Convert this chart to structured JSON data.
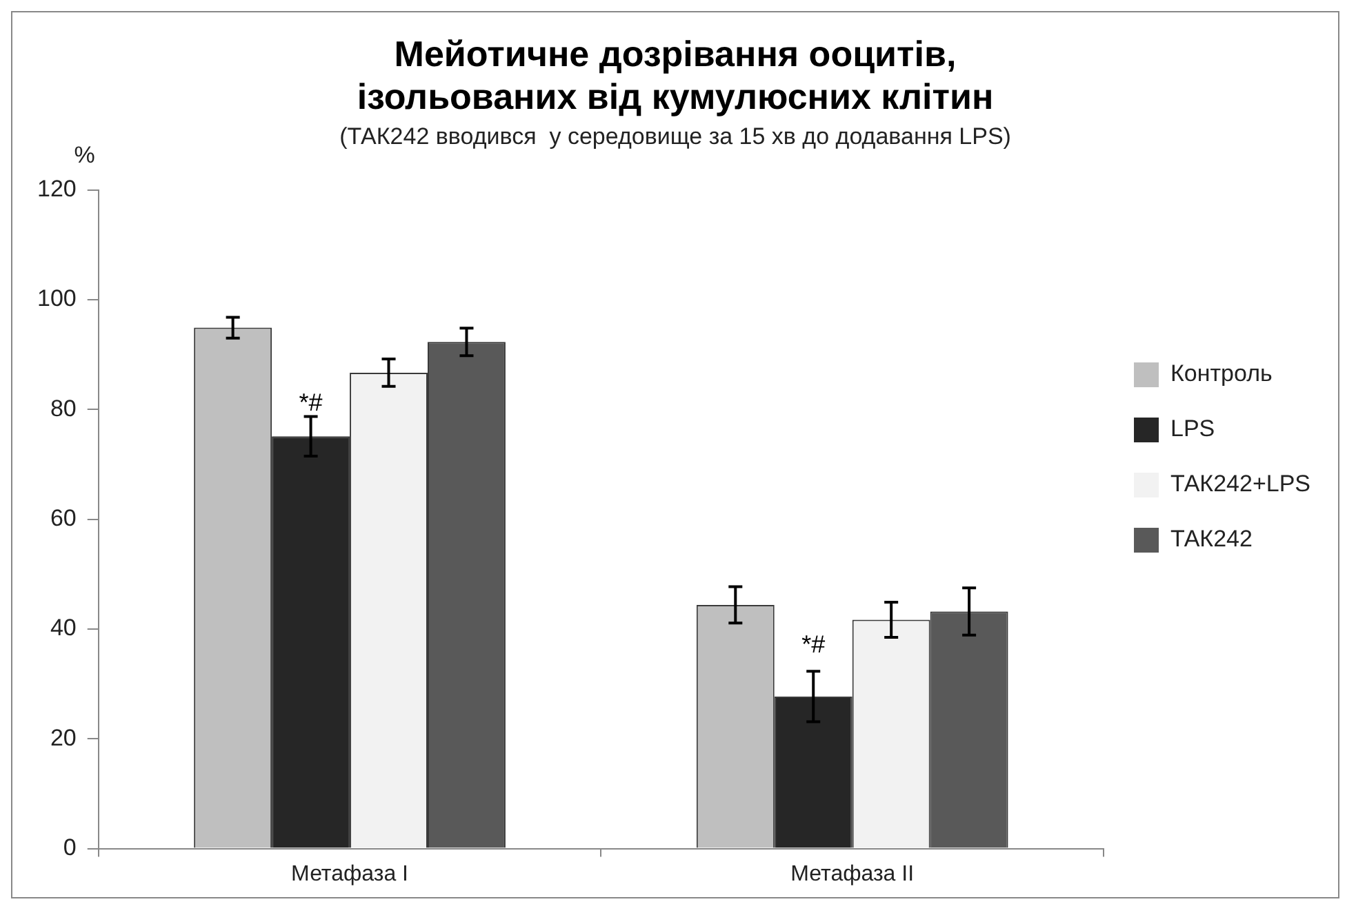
{
  "chart_data": {
    "type": "bar",
    "title": "Мейотичне дозрівання ооцитів,\nізольованих від кумулюсних клітин",
    "subtitle": "(ТАК242 вводився  у середовище за 15 хв до додавання LPS)",
    "ylabel": "%",
    "categories": [
      "Метафаза I",
      "Метафаза II"
    ],
    "series": [
      {
        "name": "Контроль",
        "color": "#bfbfbf",
        "values": [
          94.9,
          44.4
        ],
        "errors": [
          1.9,
          3.3
        ]
      },
      {
        "name": "LPS",
        "color": "#262626",
        "values": [
          75.1,
          27.7
        ],
        "errors": [
          3.6,
          4.6
        ]
      },
      {
        "name": "ТАК242+LPS",
        "color": "#f2f2f2",
        "values": [
          86.7,
          41.7
        ],
        "errors": [
          2.5,
          3.2
        ]
      },
      {
        "name": "ТАК242",
        "color": "#595959",
        "values": [
          92.3,
          43.2
        ],
        "errors": [
          2.5,
          4.3
        ]
      }
    ],
    "ylim": [
      0,
      120
    ],
    "yticks": [
      0,
      20,
      40,
      60,
      80,
      100,
      120
    ],
    "grid": false,
    "legend": "right",
    "annotations": [
      {
        "text": "*#",
        "x": "Метафаза I",
        "y": 81
      },
      {
        "text": "*#",
        "x": "Метафаза II",
        "y": 37
      }
    ]
  }
}
